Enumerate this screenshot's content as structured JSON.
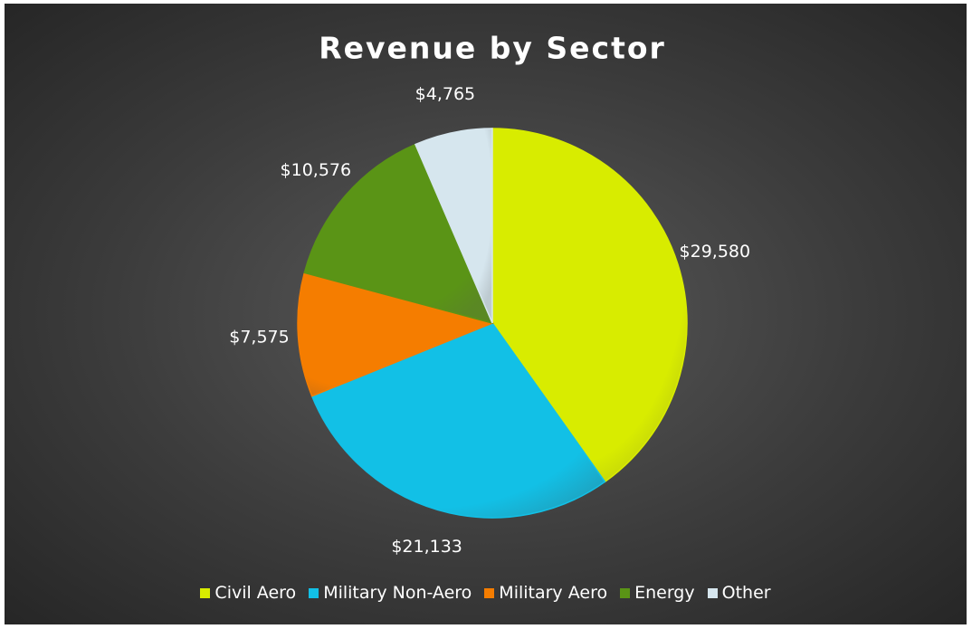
{
  "chart_data": {
    "type": "pie",
    "title": "Revenue by Sector",
    "categories": [
      "Civil Aero",
      "Military Non-Aero",
      "Military Aero",
      "Energy",
      "Other"
    ],
    "values": [
      29580,
      21133,
      7575,
      10576,
      4765
    ],
    "value_labels": [
      "$29,580",
      "$21,133",
      "$7,575",
      "$10,576",
      "$4,765"
    ],
    "colors": [
      "#d8ec00",
      "#12c0e6",
      "#f57d00",
      "#5a9416",
      "#d6e6ee"
    ],
    "legend": "bottom"
  }
}
